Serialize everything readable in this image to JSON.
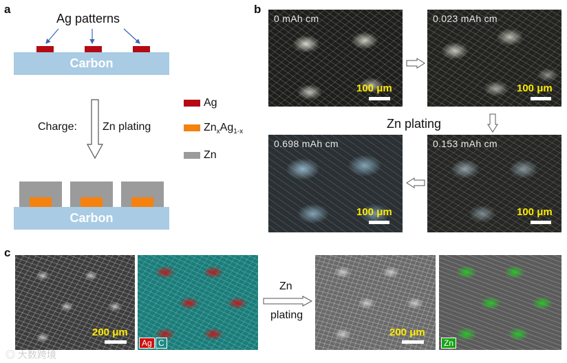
{
  "panel_a": {
    "letter": "a",
    "ag_patterns_label": "Ag patterns",
    "carbon_top": "Carbon",
    "charge_label": "Charge:",
    "zn_plating_label": "Zn plating",
    "carbon_bottom": "Carbon"
  },
  "legend": {
    "ag": "Ag",
    "znag_main": "Zn",
    "znag_sub1": "x",
    "znag_mid": "Ag",
    "znag_sub2": "1-x",
    "zn": "Zn",
    "colors": {
      "ag": "#b40a14",
      "znag": "#f5820f",
      "zn": "#9b9b9b",
      "carbon": "#a9cbe3"
    }
  },
  "panel_b": {
    "letter": "b",
    "images": [
      {
        "label": "0 mAh cm",
        "scale": "100 μm"
      },
      {
        "label": "0.023 mAh cm",
        "scale": "100 μm"
      },
      {
        "label": "0.153 mAh cm",
        "scale": "100 μm"
      },
      {
        "label": "0.698 mAh cm",
        "scale": "100 μm"
      }
    ],
    "center_label": "Zn plating"
  },
  "panel_c": {
    "letter": "c",
    "scale_left": "200 μm",
    "scale_right": "200 μm",
    "tag_ag": "Ag",
    "tag_c": "C",
    "tag_zn": "Zn",
    "arrow_label_top": "Zn",
    "arrow_label_bottom": "plating"
  },
  "watermark": "大数跨境"
}
